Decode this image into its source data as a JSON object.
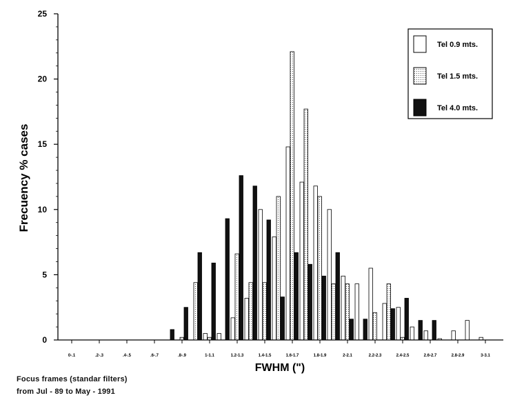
{
  "chart_data": {
    "type": "bar",
    "xlabel": "FWHM (\")",
    "ylabel": "Frecuency % cases",
    "ylim": [
      0,
      25
    ],
    "yticks": [
      0,
      5,
      10,
      15,
      20,
      25
    ],
    "grid": false,
    "legend_position": "top-right",
    "tick_labels": [
      "0-.1",
      ".2-.3",
      ".4-.5",
      ".6-.7",
      ".8-.9",
      "1-1.1",
      "1.2-1.3",
      "1.4-1.5",
      "1.6-1.7",
      "1.8-1.9",
      "2-2.1",
      "2.2-2.3",
      "2.4-2.5",
      "2.6-2.7",
      "2.8-2.9",
      "3-3.1"
    ],
    "categories": [
      "0-0.1",
      "0.1-0.2",
      "0.2-0.3",
      "0.3-0.4",
      "0.4-0.5",
      "0.5-0.6",
      "0.6-0.7",
      "0.7-0.8",
      "0.8-0.9",
      "0.9-1.0",
      "1.0-1.1",
      "1.1-1.2",
      "1.2-1.3",
      "1.3-1.4",
      "1.4-1.5",
      "1.5-1.6",
      "1.6-1.7",
      "1.7-1.8",
      "1.8-1.9",
      "1.9-2.0",
      "2.0-2.1",
      "2.1-2.2",
      "2.2-2.3",
      "2.3-2.4",
      "2.4-2.5",
      "2.5-2.6",
      "2.6-2.7",
      "2.7-2.8",
      "2.8-2.9",
      "2.9-3.0",
      "3.0-3.1"
    ],
    "series": [
      {
        "name": "Tel 0.9 mts.",
        "fill": "white",
        "values": [
          0,
          0,
          0,
          0,
          0,
          0,
          0,
          0,
          0,
          0,
          0.5,
          0.5,
          1.7,
          3.2,
          10.0,
          7.9,
          14.8,
          12.1,
          11.8,
          10.0,
          4.9,
          4.3,
          5.5,
          2.8,
          2.5,
          1.0,
          0.7,
          0.1,
          0.7,
          1.5,
          0.2
        ]
      },
      {
        "name": "Tel 1.5 mts.",
        "fill": "dotted",
        "values": [
          0,
          0,
          0,
          0,
          0,
          0,
          0,
          0,
          0.2,
          4.4,
          0.2,
          0,
          6.6,
          4.4,
          4.4,
          11.0,
          22.1,
          17.7,
          11.0,
          4.3,
          4.3,
          0,
          2.1,
          4.3,
          0.2,
          0,
          0,
          0,
          0,
          0,
          0
        ]
      },
      {
        "name": "Tel 4.0 mts.",
        "fill": "black",
        "values": [
          0,
          0,
          0,
          0,
          0,
          0,
          0,
          0.8,
          2.5,
          6.7,
          5.9,
          9.3,
          12.6,
          11.8,
          9.2,
          3.3,
          6.7,
          5.8,
          4.9,
          6.7,
          1.6,
          1.6,
          0,
          2.4,
          3.2,
          1.5,
          1.5,
          0,
          0,
          0,
          0
        ]
      }
    ]
  },
  "caption": {
    "line1": "Focus frames (standar filters)",
    "line2": "from Jul - 89 to May - 1991"
  }
}
